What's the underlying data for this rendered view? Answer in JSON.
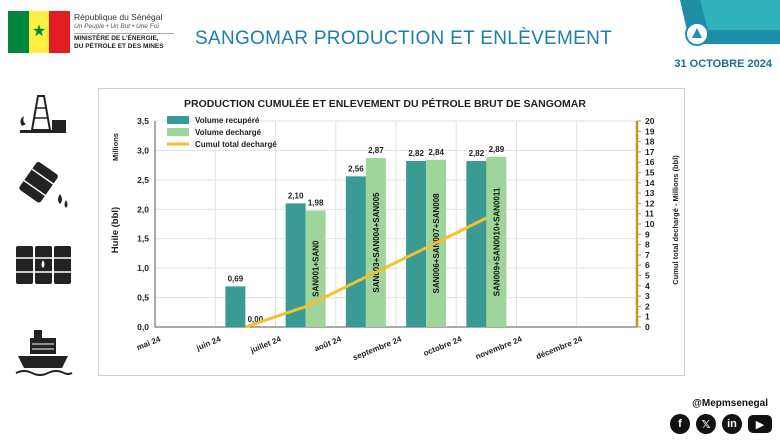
{
  "header": {
    "country": "République du Sénégal",
    "motto": "Un Peuple • Un But • Une Foi",
    "ministry_line1": "MINISTÈRE DE L'ÉNERGIE,",
    "ministry_line2": "DU PÉTROLE ET DES MINES",
    "title": "SANGOMAR  PRODUCTION ET ENLÈVEMENT",
    "date": "31 OCTOBRE 2024",
    "flag_colors": [
      "#00853f",
      "#fdef42",
      "#e31b23"
    ],
    "accent": "#1e7ea6"
  },
  "side_icons": [
    "oil-derrick-icon",
    "oil-barrel-spill-icon",
    "oil-barrels-icon",
    "tanker-ship-icon"
  ],
  "footer": {
    "handle": "@Mepmsenegal",
    "social": [
      {
        "name": "facebook-icon",
        "glyph": "f"
      },
      {
        "name": "x-icon",
        "glyph": "𝕏"
      },
      {
        "name": "linkedin-icon",
        "glyph": "in"
      },
      {
        "name": "youtube-icon",
        "glyph": "▶"
      }
    ]
  },
  "chart_data": {
    "type": "bar",
    "title": "PRODUCTION CUMULÉE ET ENLEVEMENT DU PÉTROLE BRUT DE SANGOMAR",
    "categories": [
      "mai 24",
      "juin 24",
      "juillet 24",
      "août 24",
      "septembre 24",
      "octobre 24",
      "novembre 24",
      "décembre 24"
    ],
    "series": [
      {
        "name": "Volume recupéré",
        "kind": "bar",
        "color": "#3a9a94",
        "values": [
          null,
          0.69,
          2.1,
          2.56,
          2.82,
          2.82,
          null,
          null
        ],
        "labels": [
          "",
          "0,69",
          "2,10",
          "2,56",
          "2,82",
          "2,82",
          "",
          ""
        ]
      },
      {
        "name": "Volume dechargé",
        "kind": "bar",
        "color": "#9fd49a",
        "values": [
          null,
          0.0,
          1.98,
          2.87,
          2.84,
          2.89,
          null,
          null
        ],
        "labels": [
          "",
          "0,00",
          "1,98",
          "2,87",
          "2,84",
          "2,89",
          "",
          ""
        ],
        "bar_text": [
          "",
          "",
          "SAN001+SAN0",
          "SAN003+SAN004+SAN005",
          "SAN006+SAN007+SAN008",
          "SAN009+SAN0010+SAN0011",
          "",
          ""
        ]
      },
      {
        "name": "Cumul total dechargé",
        "kind": "line",
        "color": "#f2c12e",
        "axis": "right",
        "values": [
          null,
          0.0,
          1.98,
          4.85,
          7.69,
          10.58,
          null,
          null
        ]
      }
    ],
    "ylabel": "Huile (bbl)",
    "ylabel_units": "Millions",
    "ylim": [
      0,
      3.5
    ],
    "yticks": [
      "0,0",
      "0,5",
      "1,0",
      "1,5",
      "2,0",
      "2,5",
      "3,0",
      "3,5"
    ],
    "y2label": "Cumul total dechargé - Millions (bbl)",
    "y2lim": [
      0,
      20
    ],
    "y2ticks": [
      "0",
      "1",
      "2",
      "3",
      "4",
      "5",
      "6",
      "7",
      "8",
      "9",
      "10",
      "11",
      "12",
      "13",
      "14",
      "15",
      "16",
      "17",
      "18",
      "19",
      "20"
    ],
    "grid": true,
    "legend": "top-left"
  }
}
